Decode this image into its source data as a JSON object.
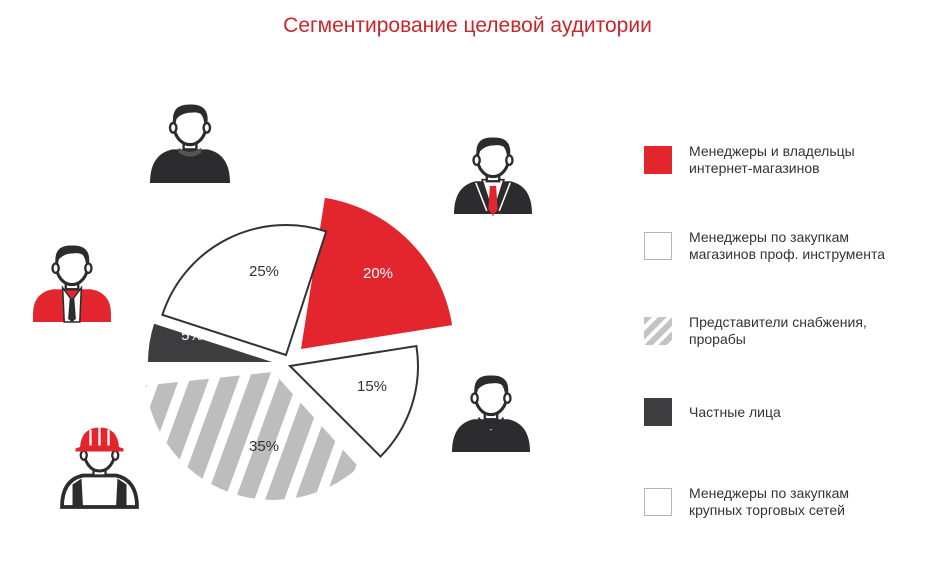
{
  "title": "Сегментирование целевой аудитории",
  "colors": {
    "red": "#e3262e",
    "dark": "#3d3d3f",
    "white": "#ffffff",
    "gray": "#bdbdbd",
    "outline": "#b5b5b5"
  },
  "chart_data": {
    "type": "pie",
    "title": "Сегментирование целевой аудитории",
    "slices": [
      {
        "label": "Менеджеры и владельцы интернет-магазинов",
        "value": 20,
        "value_label": "20%",
        "fill": "red"
      },
      {
        "label": "Менеджеры по закупкам крупных торговых сетей",
        "value": 15,
        "value_label": "15%",
        "fill": "white"
      },
      {
        "label": "Представители снабжения, прорабы",
        "value": 35,
        "value_label": "35%",
        "fill": "hatched"
      },
      {
        "label": "Частные лица",
        "value": 5,
        "value_label": "5%",
        "fill": "dark"
      },
      {
        "label": "Менеджеры по закупкам магазинов проф. инструмента",
        "value": 25,
        "value_label": "25%",
        "fill": "white"
      }
    ],
    "legend_position": "right"
  },
  "legend": [
    {
      "lines": [
        "Менеджеры и владельцы",
        "интернет-магазинов"
      ],
      "fill": "red"
    },
    {
      "lines": [
        "Менеджеры по закупкам",
        "магазинов проф. инструмента"
      ],
      "fill": "white"
    },
    {
      "lines": [
        "Представители снабжения,",
        "прорабы"
      ],
      "fill": "hatched"
    },
    {
      "lines": [
        "Частные лица"
      ],
      "fill": "dark"
    },
    {
      "lines": [
        "Менеджеры по закупкам",
        "крупных торговых сетей"
      ],
      "fill": "white"
    }
  ],
  "icons": [
    {
      "name": "person-dark-sweater-icon"
    },
    {
      "name": "businessman-red-tie-icon"
    },
    {
      "name": "worker-red-vest-icon"
    },
    {
      "name": "person-shirt-collar-icon"
    },
    {
      "name": "builder-hard-hat-icon"
    }
  ]
}
